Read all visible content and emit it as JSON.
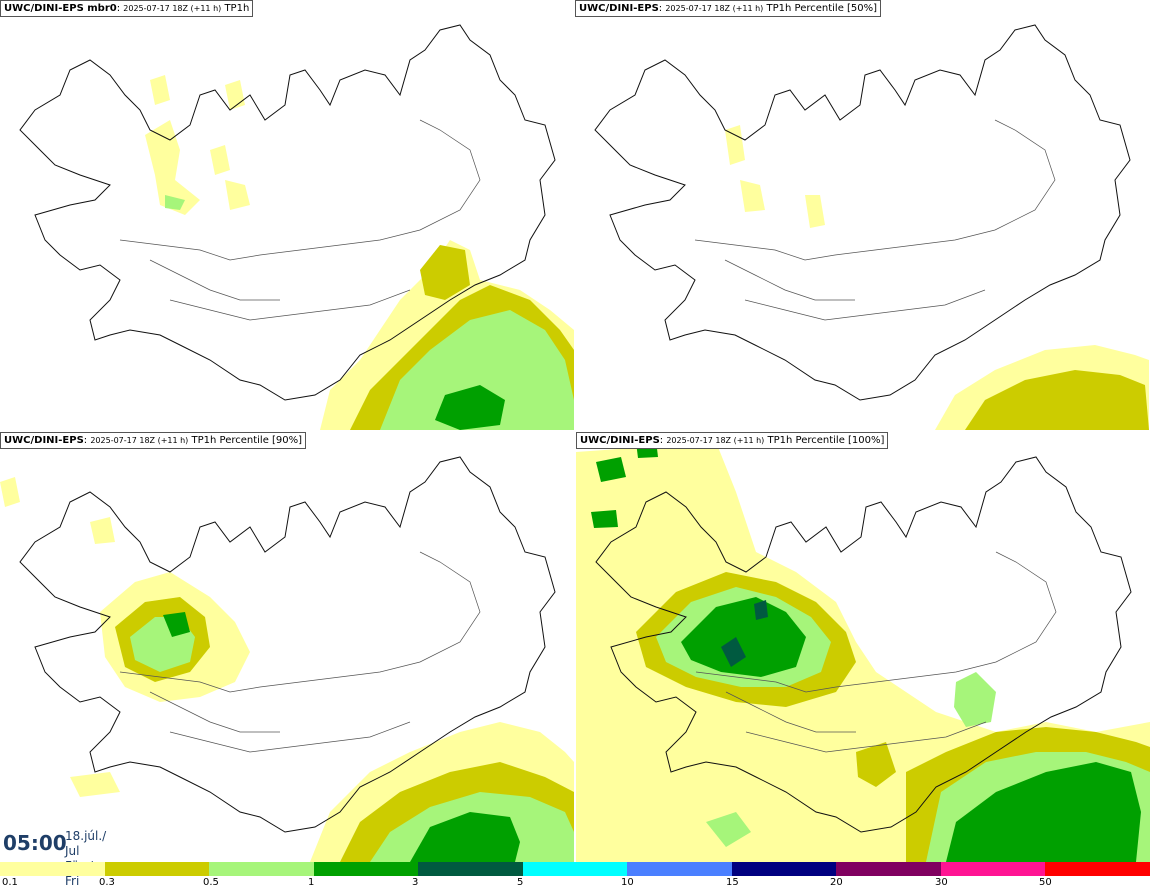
{
  "panels": [
    {
      "model": "UWC/DINI-EPS mbr0",
      "run": "2025-07-17 18Z (+11 h)",
      "field": "TP1h"
    },
    {
      "model": "UWC/DINI-EPS",
      "run": "2025-07-17 18Z (+11 h)",
      "field": "TP1h Percentile [50%]"
    },
    {
      "model": "UWC/DINI-EPS",
      "run": "2025-07-17 18Z (+11 h)",
      "field": "TP1h Percentile [90%]"
    },
    {
      "model": "UWC/DINI-EPS",
      "run": "2025-07-17 18Z (+11 h)",
      "field": "TP1h Percentile [100%]"
    }
  ],
  "valid_time": {
    "time": "05:00",
    "date_line1": "18.júl./ Jul",
    "date_line2": "Fös./ Fri"
  },
  "legend": {
    "ticks": [
      "0.1",
      "0.3",
      "0.5",
      "1",
      "3",
      "5",
      "10",
      "15",
      "20",
      "30",
      "50"
    ],
    "colors": [
      "#ffff9e",
      "#cccc00",
      "#a6f57a",
      "#00a000",
      "#005a40",
      "#00ffff",
      "#4a7fff",
      "#000080",
      "#800060",
      "#ff1493",
      "#ff0000"
    ]
  }
}
